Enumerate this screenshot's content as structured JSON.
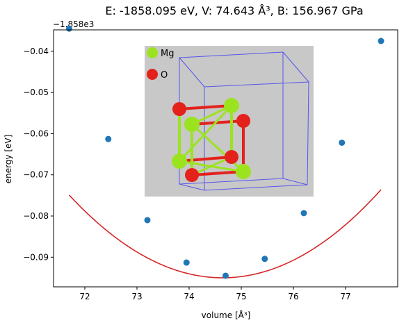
{
  "chart_data": {
    "type": "scatter",
    "title": "E: -1858.095 eV, V: 74.643 Å³, B: 156.967 GPa",
    "xlabel": "volume [Å³]",
    "ylabel": "energy [eV]",
    "y_offset_text": "−1.858e3",
    "xlim": [
      71.4,
      78.0
    ],
    "ylim": [
      -0.0972,
      -0.0348
    ],
    "x_ticks": [
      72,
      73,
      74,
      75,
      76,
      77
    ],
    "y_ticks": [
      -0.09,
      -0.08,
      -0.07,
      -0.06,
      -0.05,
      -0.04
    ],
    "x_tick_labels": [
      "72",
      "73",
      "74",
      "75",
      "76",
      "77"
    ],
    "y_tick_labels": [
      "−0.09",
      "−0.08",
      "−0.07",
      "−0.06",
      "−0.05",
      "−0.04"
    ],
    "grid": false,
    "series": [
      {
        "kind": "points",
        "color": "#1f77b4",
        "x": [
          71.7,
          72.45,
          73.2,
          73.95,
          74.7,
          75.45,
          76.2,
          76.93,
          77.68
        ],
        "y": [
          -0.0345,
          -0.0613,
          -0.081,
          -0.0913,
          -0.0945,
          -0.0904,
          -0.0793,
          -0.0622,
          -0.0375
        ]
      },
      {
        "kind": "fit-curve",
        "color": "#d62728",
        "x_min": 71.7,
        "x_max": 77.68,
        "quadratic": {
          "a": 0.00232,
          "x0": 74.643,
          "y0": -0.095
        }
      }
    ]
  },
  "inset": {
    "legend": [
      {
        "label": "Mg",
        "color": "#9be31f"
      },
      {
        "label": "O",
        "color": "#e3221c"
      }
    ]
  }
}
